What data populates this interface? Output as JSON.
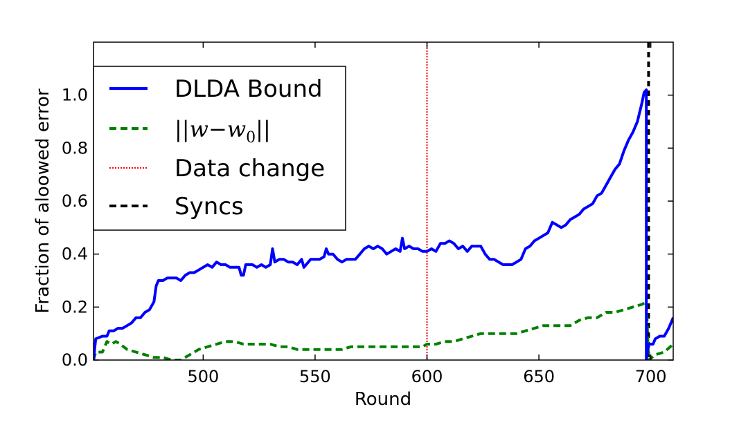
{
  "chart_data": {
    "type": "line",
    "title": "",
    "xlabel": "Round",
    "ylabel": "Fraction of aloowed error",
    "xlim": [
      451,
      710
    ],
    "ylim": [
      0.0,
      1.2
    ],
    "xticks": [
      500,
      550,
      600,
      650,
      700
    ],
    "yticks": [
      0.0,
      0.2,
      0.4,
      0.6,
      0.8,
      1.0
    ],
    "xtick_labels": [
      "500",
      "550",
      "600",
      "650",
      "700"
    ],
    "ytick_labels": [
      "0.0",
      "0.2",
      "0.4",
      "0.6",
      "0.8",
      "1.0"
    ],
    "legend_position": "upper-left",
    "series": [
      {
        "name": "DLDA Bound",
        "color": "#0000ff",
        "style": "solid",
        "points": [
          [
            451,
            0.0
          ],
          [
            452,
            0.08
          ],
          [
            455,
            0.09
          ],
          [
            457,
            0.09
          ],
          [
            458,
            0.11
          ],
          [
            460,
            0.11
          ],
          [
            462,
            0.12
          ],
          [
            464,
            0.12
          ],
          [
            466,
            0.13
          ],
          [
            468,
            0.14
          ],
          [
            470,
            0.16
          ],
          [
            472,
            0.16
          ],
          [
            474,
            0.18
          ],
          [
            476,
            0.19
          ],
          [
            478,
            0.22
          ],
          [
            479,
            0.28
          ],
          [
            480,
            0.3
          ],
          [
            482,
            0.3
          ],
          [
            484,
            0.31
          ],
          [
            486,
            0.31
          ],
          [
            488,
            0.31
          ],
          [
            490,
            0.3
          ],
          [
            492,
            0.32
          ],
          [
            494,
            0.33
          ],
          [
            496,
            0.33
          ],
          [
            498,
            0.34
          ],
          [
            500,
            0.35
          ],
          [
            502,
            0.36
          ],
          [
            504,
            0.35
          ],
          [
            506,
            0.37
          ],
          [
            508,
            0.36
          ],
          [
            510,
            0.36
          ],
          [
            512,
            0.35
          ],
          [
            514,
            0.35
          ],
          [
            516,
            0.35
          ],
          [
            517,
            0.32
          ],
          [
            518,
            0.32
          ],
          [
            519,
            0.36
          ],
          [
            522,
            0.36
          ],
          [
            524,
            0.35
          ],
          [
            526,
            0.36
          ],
          [
            528,
            0.35
          ],
          [
            530,
            0.36
          ],
          [
            531,
            0.42
          ],
          [
            532,
            0.37
          ],
          [
            534,
            0.38
          ],
          [
            536,
            0.38
          ],
          [
            538,
            0.37
          ],
          [
            540,
            0.37
          ],
          [
            542,
            0.36
          ],
          [
            544,
            0.38
          ],
          [
            545,
            0.35
          ],
          [
            546,
            0.36
          ],
          [
            548,
            0.38
          ],
          [
            550,
            0.38
          ],
          [
            552,
            0.38
          ],
          [
            554,
            0.39
          ],
          [
            555,
            0.42
          ],
          [
            556,
            0.4
          ],
          [
            558,
            0.4
          ],
          [
            560,
            0.38
          ],
          [
            562,
            0.37
          ],
          [
            564,
            0.38
          ],
          [
            566,
            0.38
          ],
          [
            568,
            0.38
          ],
          [
            570,
            0.4
          ],
          [
            572,
            0.42
          ],
          [
            574,
            0.43
          ],
          [
            576,
            0.42
          ],
          [
            578,
            0.43
          ],
          [
            580,
            0.42
          ],
          [
            582,
            0.4
          ],
          [
            584,
            0.41
          ],
          [
            586,
            0.42
          ],
          [
            588,
            0.41
          ],
          [
            589,
            0.46
          ],
          [
            590,
            0.42
          ],
          [
            592,
            0.43
          ],
          [
            594,
            0.42
          ],
          [
            596,
            0.42
          ],
          [
            598,
            0.41
          ],
          [
            600,
            0.41
          ],
          [
            602,
            0.42
          ],
          [
            604,
            0.41
          ],
          [
            606,
            0.44
          ],
          [
            608,
            0.44
          ],
          [
            610,
            0.45
          ],
          [
            612,
            0.44
          ],
          [
            614,
            0.42
          ],
          [
            616,
            0.43
          ],
          [
            618,
            0.41
          ],
          [
            620,
            0.43
          ],
          [
            622,
            0.43
          ],
          [
            624,
            0.43
          ],
          [
            626,
            0.4
          ],
          [
            628,
            0.38
          ],
          [
            630,
            0.38
          ],
          [
            632,
            0.37
          ],
          [
            634,
            0.36
          ],
          [
            636,
            0.36
          ],
          [
            638,
            0.36
          ],
          [
            640,
            0.37
          ],
          [
            642,
            0.38
          ],
          [
            644,
            0.42
          ],
          [
            646,
            0.43
          ],
          [
            648,
            0.45
          ],
          [
            650,
            0.46
          ],
          [
            652,
            0.47
          ],
          [
            654,
            0.48
          ],
          [
            656,
            0.52
          ],
          [
            658,
            0.51
          ],
          [
            660,
            0.5
          ],
          [
            662,
            0.51
          ],
          [
            664,
            0.53
          ],
          [
            666,
            0.54
          ],
          [
            668,
            0.55
          ],
          [
            670,
            0.57
          ],
          [
            672,
            0.58
          ],
          [
            674,
            0.59
          ],
          [
            676,
            0.62
          ],
          [
            678,
            0.63
          ],
          [
            680,
            0.66
          ],
          [
            682,
            0.69
          ],
          [
            684,
            0.72
          ],
          [
            686,
            0.74
          ],
          [
            688,
            0.79
          ],
          [
            690,
            0.83
          ],
          [
            692,
            0.86
          ],
          [
            694,
            0.9
          ],
          [
            696,
            0.97
          ],
          [
            697,
            1.01
          ],
          [
            698,
            1.02
          ],
          [
            698,
            0.0
          ],
          [
            699,
            0.06
          ],
          [
            701,
            0.06
          ],
          [
            702,
            0.08
          ],
          [
            704,
            0.09
          ],
          [
            706,
            0.09
          ],
          [
            708,
            0.12
          ],
          [
            710,
            0.16
          ]
        ]
      },
      {
        "name": "||w-w0||",
        "color": "#008000",
        "style": "dashed",
        "points": [
          [
            451,
            0.0
          ],
          [
            452,
            0.03
          ],
          [
            455,
            0.03
          ],
          [
            457,
            0.07
          ],
          [
            459,
            0.06
          ],
          [
            461,
            0.07
          ],
          [
            463,
            0.06
          ],
          [
            466,
            0.04
          ],
          [
            470,
            0.03
          ],
          [
            474,
            0.02
          ],
          [
            478,
            0.01
          ],
          [
            482,
            0.01
          ],
          [
            486,
            0.0
          ],
          [
            490,
            0.0
          ],
          [
            494,
            0.02
          ],
          [
            498,
            0.04
          ],
          [
            502,
            0.05
          ],
          [
            506,
            0.06
          ],
          [
            510,
            0.07
          ],
          [
            514,
            0.07
          ],
          [
            518,
            0.06
          ],
          [
            522,
            0.06
          ],
          [
            526,
            0.06
          ],
          [
            530,
            0.06
          ],
          [
            534,
            0.05
          ],
          [
            538,
            0.05
          ],
          [
            542,
            0.04
          ],
          [
            546,
            0.04
          ],
          [
            550,
            0.04
          ],
          [
            554,
            0.04
          ],
          [
            558,
            0.04
          ],
          [
            562,
            0.04
          ],
          [
            566,
            0.05
          ],
          [
            570,
            0.05
          ],
          [
            574,
            0.05
          ],
          [
            578,
            0.05
          ],
          [
            582,
            0.05
          ],
          [
            586,
            0.05
          ],
          [
            590,
            0.05
          ],
          [
            594,
            0.05
          ],
          [
            598,
            0.05
          ],
          [
            600,
            0.06
          ],
          [
            604,
            0.06
          ],
          [
            608,
            0.07
          ],
          [
            612,
            0.07
          ],
          [
            616,
            0.08
          ],
          [
            620,
            0.09
          ],
          [
            624,
            0.1
          ],
          [
            628,
            0.1
          ],
          [
            632,
            0.1
          ],
          [
            636,
            0.1
          ],
          [
            640,
            0.1
          ],
          [
            644,
            0.11
          ],
          [
            648,
            0.12
          ],
          [
            652,
            0.13
          ],
          [
            656,
            0.13
          ],
          [
            660,
            0.13
          ],
          [
            664,
            0.13
          ],
          [
            668,
            0.15
          ],
          [
            672,
            0.16
          ],
          [
            676,
            0.16
          ],
          [
            680,
            0.18
          ],
          [
            684,
            0.18
          ],
          [
            688,
            0.19
          ],
          [
            692,
            0.2
          ],
          [
            696,
            0.21
          ],
          [
            698,
            0.22
          ],
          [
            699,
            0.0
          ],
          [
            702,
            0.02
          ],
          [
            706,
            0.03
          ],
          [
            710,
            0.06
          ]
        ]
      }
    ],
    "vlines": [
      {
        "name": "Data change",
        "x": 600,
        "color": "#ff0000",
        "style": "dotted"
      },
      {
        "name": "Syncs",
        "x": 699,
        "color": "#000000",
        "style": "dashed"
      }
    ]
  },
  "legend": {
    "items": [
      {
        "label": "DLDA Bound",
        "color": "#0000ff",
        "style": "solid"
      },
      {
        "label": "||w−w0||",
        "color": "#008000",
        "style": "dashed"
      },
      {
        "label": "Data change",
        "color": "#ff0000",
        "style": "dotted"
      },
      {
        "label": "Syncs",
        "color": "#000000",
        "style": "dashed"
      }
    ]
  }
}
